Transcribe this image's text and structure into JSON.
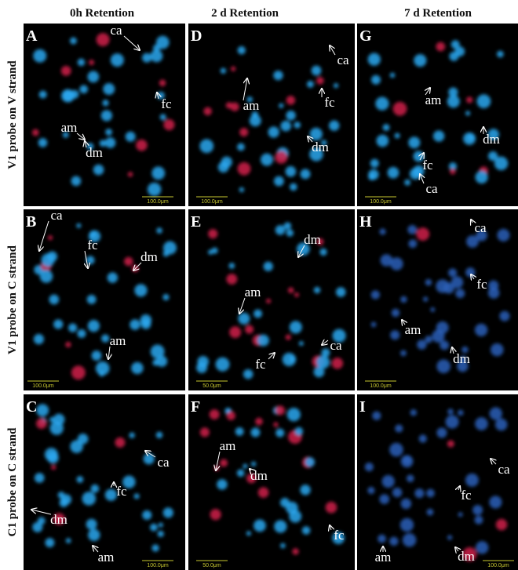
{
  "column_headers": [
    "0h Retention",
    "2 d Retention",
    "7 d Retention"
  ],
  "row_labels": [
    "V1 probe on V strand",
    "V1 probe on C strand",
    "C1 probe on C strand"
  ],
  "panels": [
    {
      "letter": "A",
      "annotations": [
        "ca",
        "fc",
        "am",
        "dm"
      ],
      "scale_bar": "100.0μm"
    },
    {
      "letter": "B",
      "annotations": [
        "ca",
        "fc",
        "dm",
        "am"
      ],
      "scale_bar": "100.0μm"
    },
    {
      "letter": "C",
      "annotations": [
        "ca",
        "fc",
        "dm",
        "am"
      ],
      "scale_bar": "100.0μm"
    },
    {
      "letter": "D",
      "annotations": [
        "ca",
        "fc",
        "am",
        "dm"
      ],
      "scale_bar": "100.0μm"
    },
    {
      "letter": "E",
      "annotations": [
        "dm",
        "am",
        "ca",
        "fc"
      ],
      "scale_bar": "50.0μm"
    },
    {
      "letter": "F",
      "annotations": [
        "am",
        "dm",
        "fc"
      ],
      "scale_bar": "50.0μm"
    },
    {
      "letter": "G",
      "annotations": [
        "am",
        "dm",
        "fc",
        "ca"
      ],
      "scale_bar": "100.0μm"
    },
    {
      "letter": "H",
      "annotations": [
        "ca",
        "fc",
        "am",
        "dm"
      ],
      "scale_bar": "100.0μm"
    },
    {
      "letter": "I",
      "annotations": [
        "ca",
        "fc",
        "am",
        "dm"
      ],
      "scale_bar": "100.0μm"
    }
  ]
}
